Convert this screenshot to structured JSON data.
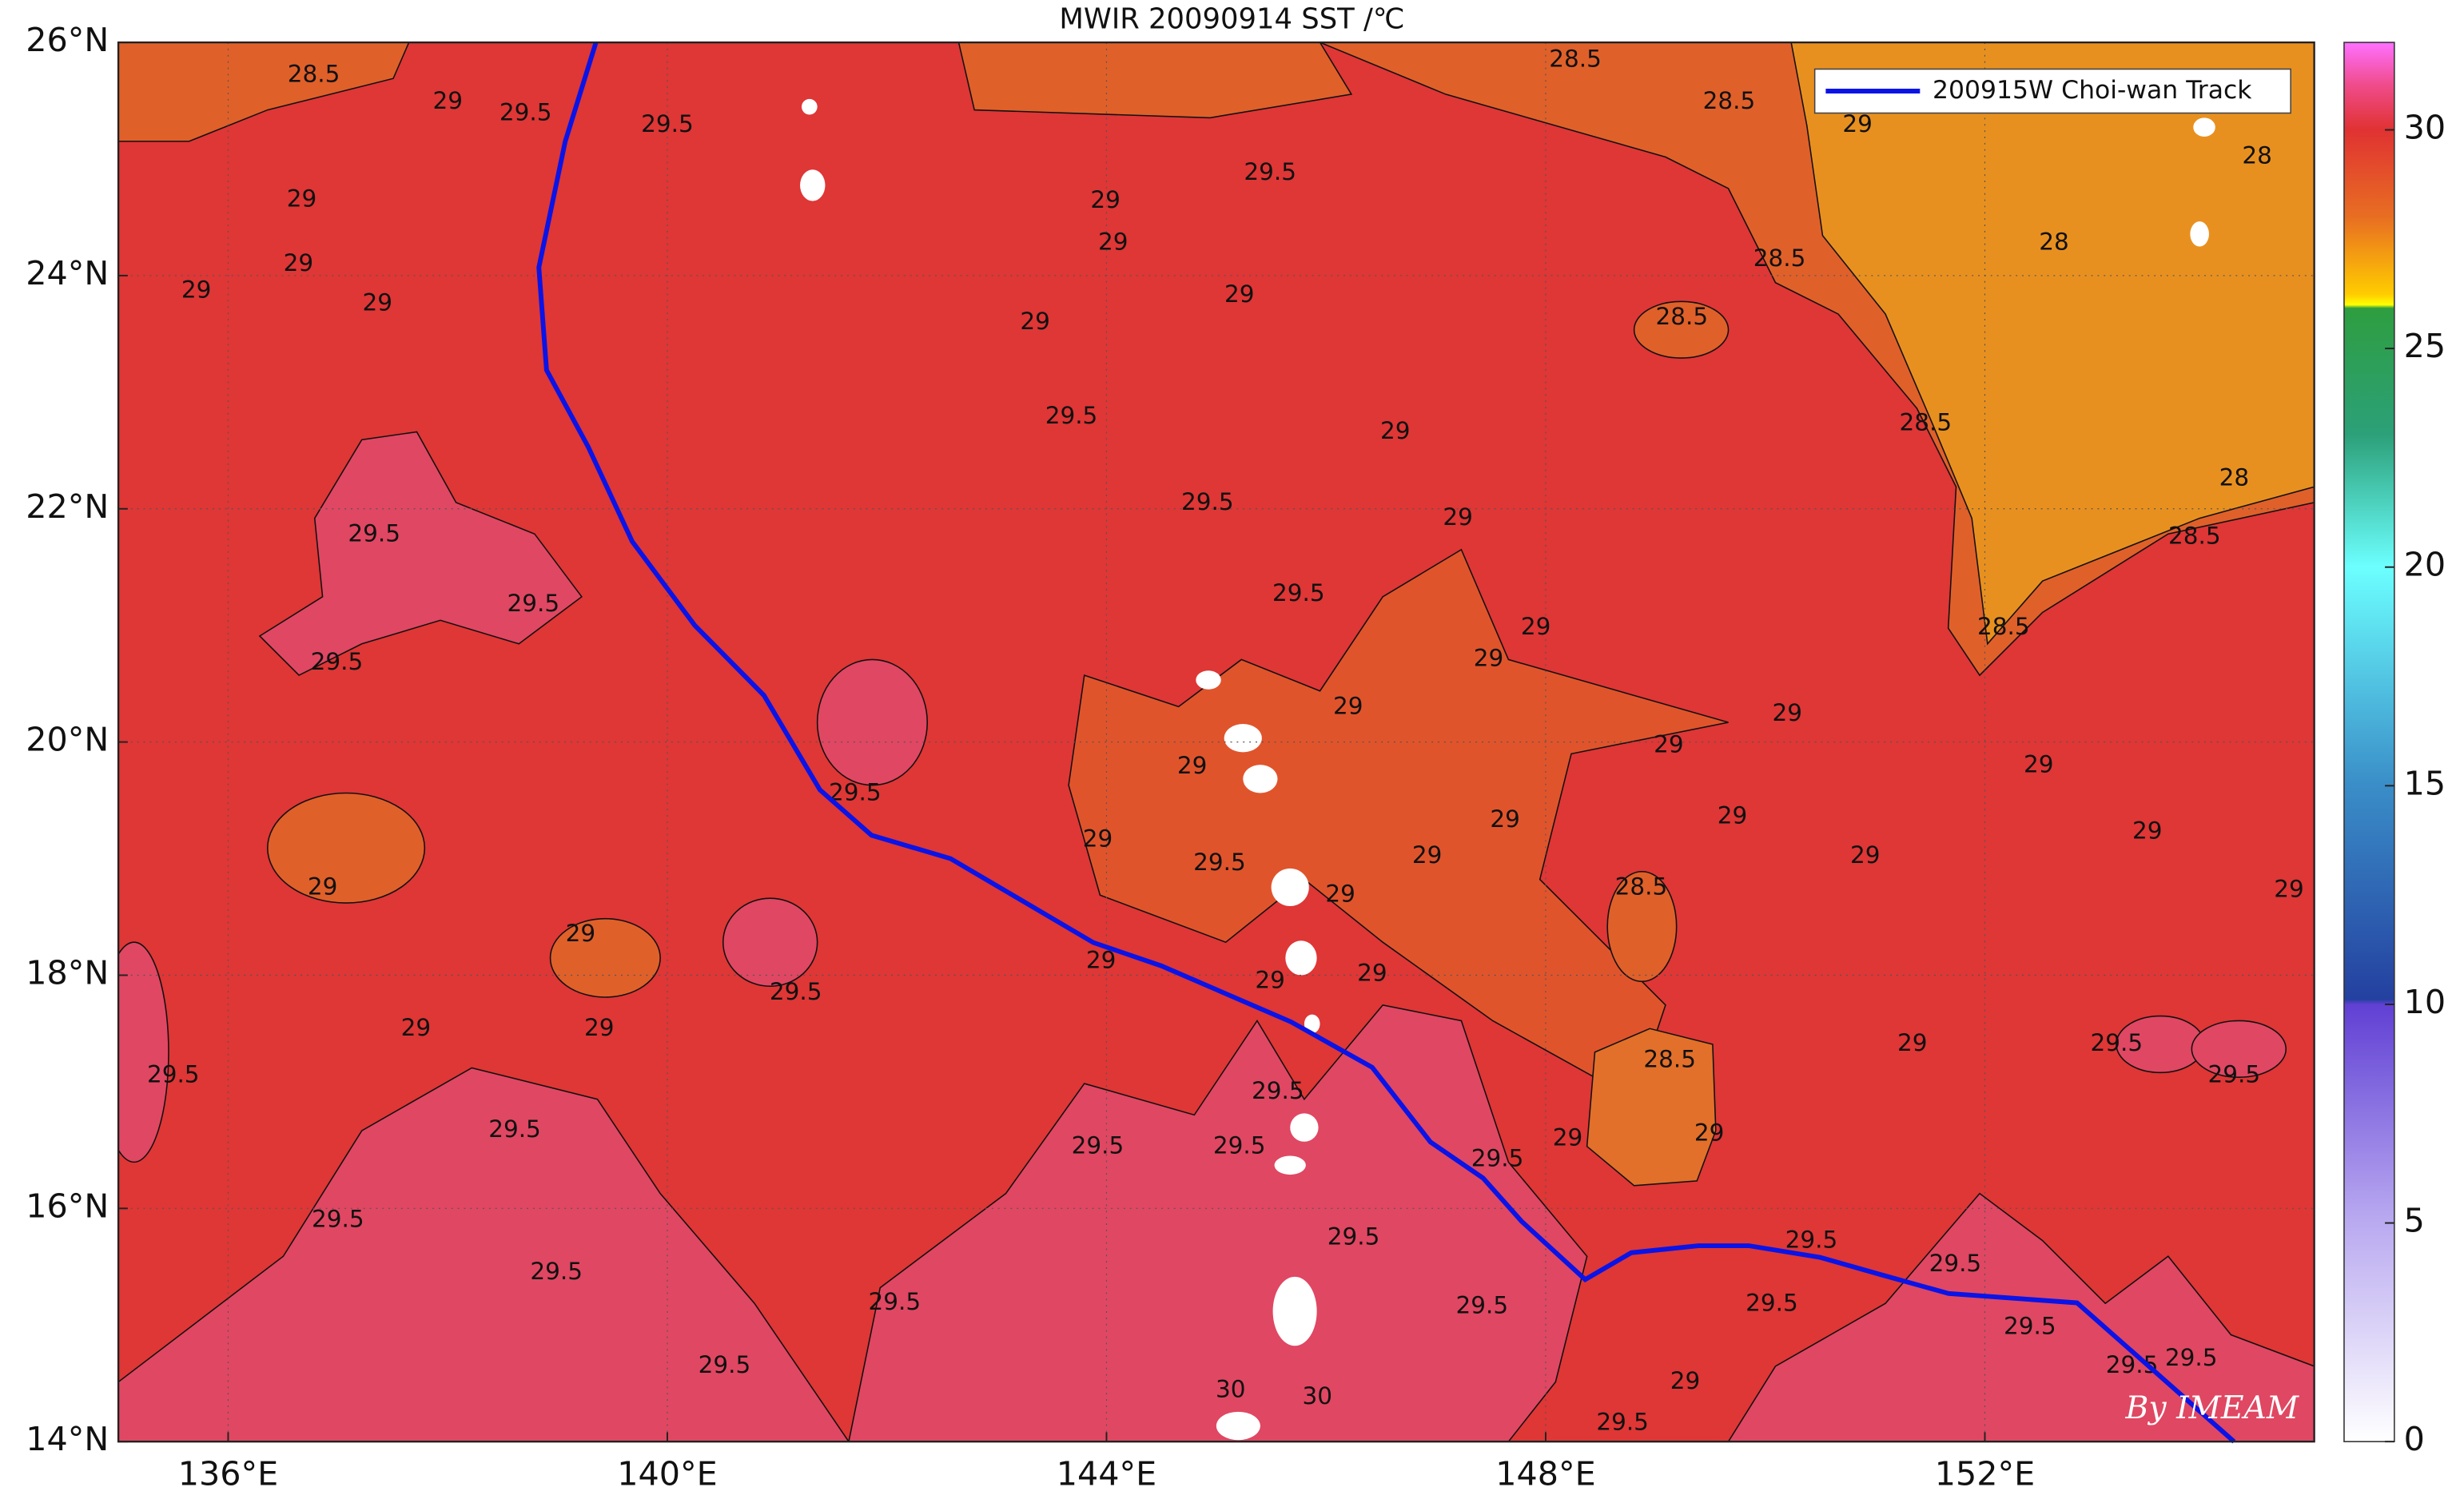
{
  "chart_data": {
    "type": "map",
    "title": "MWIR 20090914 SST /℃",
    "xlim": [
      135,
      155
    ],
    "ylim": [
      14,
      26
    ],
    "xticks": [
      {
        "value": 136,
        "label": "136°E"
      },
      {
        "value": 140,
        "label": "140°E"
      },
      {
        "value": 144,
        "label": "144°E"
      },
      {
        "value": 148,
        "label": "148°E"
      },
      {
        "value": 152,
        "label": "152°E"
      }
    ],
    "yticks": [
      {
        "value": 14,
        "label": "14°N"
      },
      {
        "value": 16,
        "label": "16°N"
      },
      {
        "value": 18,
        "label": "18°N"
      },
      {
        "value": 20,
        "label": "20°N"
      },
      {
        "value": 22,
        "label": "22°N"
      },
      {
        "value": 24,
        "label": "24°N"
      },
      {
        "value": 26,
        "label": "26°N"
      }
    ],
    "grid": true,
    "legend": "upper right",
    "series": [
      {
        "name": "200915W Choi-wan Track",
        "color": "#0a14e6",
        "lon": [
          139.35,
          139.07,
          138.83,
          138.9,
          139.28,
          139.68,
          140.25,
          140.88,
          141.39,
          141.86,
          142.58,
          143.88,
          144.5,
          145.68,
          146.42,
          146.95,
          147.43,
          147.78,
          148.36,
          148.78,
          149.39,
          149.85,
          150.5,
          151.06,
          151.67,
          152.84,
          154.27
        ],
        "lat": [
          26.0,
          25.15,
          24.07,
          23.19,
          22.53,
          21.72,
          21.0,
          20.4,
          19.59,
          19.2,
          19.0,
          18.28,
          18.08,
          17.6,
          17.21,
          16.57,
          16.26,
          15.89,
          15.39,
          15.62,
          15.68,
          15.68,
          15.58,
          15.43,
          15.27,
          15.19,
          14.0
        ]
      }
    ],
    "colorbar": {
      "lim": [
        0,
        32
      ],
      "ticks": [
        0,
        5,
        10,
        15,
        20,
        25,
        30
      ]
    },
    "contour_labels": [
      [
        "28.5",
        136.78,
        25.72
      ],
      [
        "29",
        138.0,
        25.49
      ],
      [
        "29.5",
        138.71,
        25.39
      ],
      [
        "29.5",
        140.0,
        25.29
      ],
      [
        "29",
        136.67,
        24.65
      ],
      [
        "29",
        136.64,
        24.1
      ],
      [
        "29",
        135.71,
        23.87
      ],
      [
        "29",
        137.36,
        23.76
      ],
      [
        "29.5",
        137.33,
        21.78
      ],
      [
        "29.5",
        138.78,
        21.18
      ],
      [
        "29.5",
        136.99,
        20.68
      ],
      [
        "28.5",
        148.27,
        25.85
      ],
      [
        "28.5",
        149.67,
        25.49
      ],
      [
        "29",
        150.84,
        25.29
      ],
      [
        "28",
        154.48,
        25.02
      ],
      [
        "28",
        152.63,
        24.28
      ],
      [
        "28.5",
        150.13,
        24.14
      ],
      [
        "28.5",
        149.24,
        23.64
      ],
      [
        "28.5",
        151.46,
        22.73
      ],
      [
        "28",
        154.27,
        22.26
      ],
      [
        "28.5",
        153.91,
        21.76
      ],
      [
        "28.5",
        152.17,
        20.98
      ],
      [
        "29",
        143.99,
        24.64
      ],
      [
        "29.5",
        145.49,
        24.88
      ],
      [
        "29",
        144.06,
        24.28
      ],
      [
        "29",
        145.21,
        23.83
      ],
      [
        "29",
        143.35,
        23.6
      ],
      [
        "29.5",
        143.68,
        22.79
      ],
      [
        "29",
        146.63,
        22.66
      ],
      [
        "29.5",
        144.92,
        22.05
      ],
      [
        "29.5",
        145.75,
        21.27
      ],
      [
        "29",
        147.2,
        21.92
      ],
      [
        "29",
        147.91,
        20.98
      ],
      [
        "29",
        147.48,
        20.71
      ],
      [
        "29",
        146.2,
        20.3
      ],
      [
        "29",
        144.78,
        19.79
      ],
      [
        "29",
        143.92,
        19.16
      ],
      [
        "29.5",
        141.71,
        19.56
      ],
      [
        "29.5",
        145.03,
        18.96
      ],
      [
        "29",
        146.13,
        18.69
      ],
      [
        "29",
        146.92,
        19.02
      ],
      [
        "29",
        147.63,
        19.33
      ],
      [
        "29",
        149.12,
        19.97
      ],
      [
        "29",
        150.2,
        20.24
      ],
      [
        "29",
        149.7,
        19.36
      ],
      [
        "29",
        150.91,
        19.02
      ],
      [
        "29",
        152.49,
        19.8
      ],
      [
        "29",
        153.48,
        19.23
      ],
      [
        "29",
        154.77,
        18.73
      ],
      [
        "28.5",
        148.87,
        18.75
      ],
      [
        "28.5",
        149.13,
        17.27
      ],
      [
        "29",
        151.34,
        17.41
      ],
      [
        "29",
        149.49,
        16.64
      ],
      [
        "29",
        148.2,
        16.6
      ],
      [
        "29.5",
        153.2,
        17.41
      ],
      [
        "29.5",
        154.27,
        17.14
      ],
      [
        "29",
        139.21,
        18.35
      ],
      [
        "29",
        137.71,
        17.54
      ],
      [
        "29",
        139.38,
        17.54
      ],
      [
        "29.5",
        141.17,
        17.85
      ],
      [
        "29",
        143.95,
        18.12
      ],
      [
        "29",
        146.42,
        18.01
      ],
      [
        "29",
        145.49,
        17.95
      ],
      [
        "29.5",
        135.5,
        17.14
      ],
      [
        "29.5",
        138.61,
        16.67
      ],
      [
        "29",
        136.86,
        18.75
      ],
      [
        "29.5",
        137.0,
        15.9
      ],
      [
        "29.5",
        143.92,
        16.53
      ],
      [
        "29.5",
        145.21,
        16.53
      ],
      [
        "29.5",
        145.56,
        17.0
      ],
      [
        "29.5",
        147.56,
        16.42
      ],
      [
        "29.5",
        146.25,
        15.75
      ],
      [
        "29.5",
        147.42,
        15.16
      ],
      [
        "29.5",
        138.99,
        15.45
      ],
      [
        "29.5",
        140.52,
        14.65
      ],
      [
        "29.5",
        142.07,
        15.19
      ],
      [
        "30",
        145.13,
        14.44
      ],
      [
        "30",
        145.92,
        14.38
      ],
      [
        "29",
        149.27,
        14.51
      ],
      [
        "29.5",
        148.7,
        14.16
      ],
      [
        "29.5",
        150.42,
        15.72
      ],
      [
        "29.5",
        150.06,
        15.18
      ],
      [
        "29.5",
        151.73,
        15.52
      ],
      [
        "29.5",
        152.41,
        14.98
      ],
      [
        "29.5",
        153.34,
        14.65
      ],
      [
        "29.5",
        153.88,
        14.71
      ]
    ],
    "watermark": "By IMEAM"
  }
}
